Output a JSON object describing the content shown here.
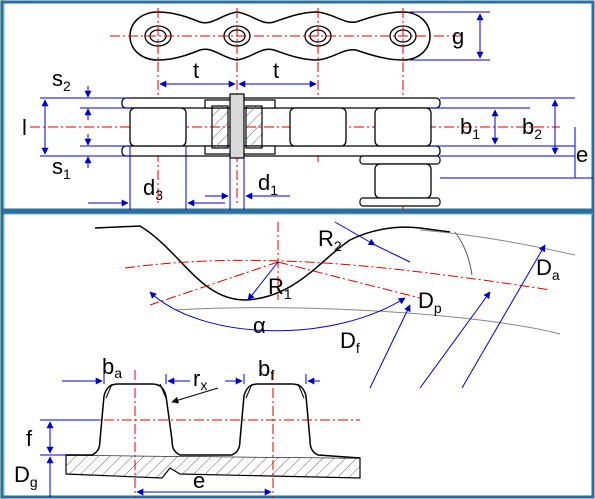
{
  "colors": {
    "frame": "#2a6f9e",
    "background": "#ffffff",
    "left_strip": "#c7dcc7",
    "centerline": "#e00000",
    "dimension": "#0000cc",
    "outline": "#000000",
    "plate_fill": "#dcdcdc",
    "hatch": "#666666",
    "pin_fill": "#d8d8d8"
  },
  "chain_drawing": {
    "labels": {
      "g": "g",
      "t1": "t",
      "t2": "t",
      "s2": {
        "main": "s",
        "sub": "2"
      },
      "s1": {
        "main": "s",
        "sub": "1"
      },
      "l": "l",
      "b1": {
        "main": "b",
        "sub": "1"
      },
      "b2": {
        "main": "b",
        "sub": "2"
      },
      "e": "e",
      "d3": {
        "main": "d",
        "sub": "3"
      },
      "d1": {
        "main": "d",
        "sub": "1"
      }
    }
  },
  "sprocket_drawing": {
    "labels": {
      "R2": {
        "main": "R",
        "sub": "2"
      },
      "R1": {
        "main": "R",
        "sub": "1"
      },
      "alpha": "α",
      "Da": {
        "main": "D",
        "sub": "a"
      },
      "Dp": {
        "main": "D",
        "sub": "p"
      },
      "Df": {
        "main": "D",
        "sub": "f"
      }
    }
  },
  "tooth_drawing": {
    "labels": {
      "ba": {
        "main": "b",
        "sub": "a"
      },
      "rx": {
        "main": "r",
        "sub": "x"
      },
      "bf": {
        "main": "b",
        "sub": "f"
      },
      "f": "f",
      "Dg": {
        "main": "D",
        "sub": "g"
      },
      "e": "e"
    }
  }
}
